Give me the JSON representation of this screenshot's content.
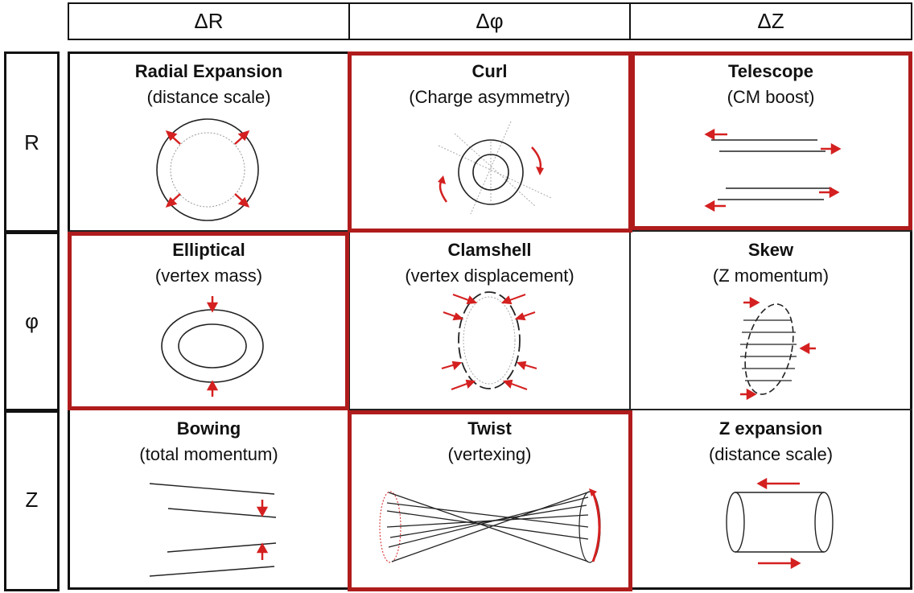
{
  "columns": [
    "ΔR",
    "Δφ",
    "ΔZ"
  ],
  "rows": [
    "R",
    "φ",
    "Z"
  ],
  "cells": [
    {
      "title": "Radial Expansion",
      "subtitle": "(distance scale)",
      "icon": "radial-expansion-icon",
      "highlighted": false
    },
    {
      "title": "Curl",
      "subtitle": "(Charge asymmetry)",
      "icon": "curl-icon",
      "highlighted": true
    },
    {
      "title": "Telescope",
      "subtitle": "(CM boost)",
      "icon": "telescope-icon",
      "highlighted": true
    },
    {
      "title": "Elliptical",
      "subtitle": "(vertex mass)",
      "icon": "elliptical-icon",
      "highlighted": true
    },
    {
      "title": "Clamshell",
      "subtitle": "(vertex displacement)",
      "icon": "clamshell-icon",
      "highlighted": false
    },
    {
      "title": "Skew",
      "subtitle": "(Z momentum)",
      "icon": "skew-icon",
      "highlighted": false
    },
    {
      "title": "Bowing",
      "subtitle": "(total momentum)",
      "icon": "bowing-icon",
      "highlighted": false
    },
    {
      "title": "Twist",
      "subtitle": "(vertexing)",
      "icon": "twist-icon",
      "highlighted": true
    },
    {
      "title": "Z expansion",
      "subtitle": "(distance scale)",
      "icon": "z-expansion-icon",
      "highlighted": false
    }
  ],
  "colors": {
    "highlight": "#b01c1c",
    "arrow": "#d42020",
    "line": "#222222"
  }
}
